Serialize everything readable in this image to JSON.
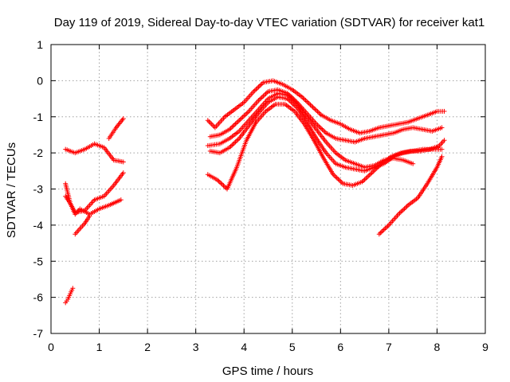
{
  "chart_data": {
    "type": "scatter",
    "title": "Day 119 of 2019, Sidereal Day-to-day VTEC variation (SDTVAR) for receiver kat1",
    "xlabel": "GPS time / hours",
    "ylabel": "SDTVAR / TECUs",
    "xlim": [
      0,
      9
    ],
    "ylim": [
      -7,
      1
    ],
    "xticks": [
      "0",
      "1",
      "2",
      "3",
      "4",
      "5",
      "6",
      "7",
      "8",
      "9"
    ],
    "yticks": [
      "-7",
      "-6",
      "-5",
      "-4",
      "-3",
      "-2",
      "-1",
      "0",
      "1"
    ],
    "grid": true,
    "marker": "+",
    "color": "#ff0000",
    "series": [
      {
        "name": "early-1",
        "x": [
          0.3,
          0.5,
          0.7,
          0.9,
          1.1,
          1.3,
          1.5
        ],
        "y": [
          -1.9,
          -2.0,
          -1.9,
          -1.75,
          -1.85,
          -2.2,
          -2.25
        ]
      },
      {
        "name": "early-2",
        "x": [
          1.2,
          1.35,
          1.5
        ],
        "y": [
          -1.6,
          -1.3,
          -1.05
        ]
      },
      {
        "name": "early-3",
        "x": [
          0.3,
          0.4,
          0.5,
          0.7,
          0.9,
          1.1,
          1.3,
          1.5
        ],
        "y": [
          -3.2,
          -3.4,
          -3.65,
          -3.6,
          -3.3,
          -3.2,
          -2.9,
          -2.55
        ]
      },
      {
        "name": "early-4",
        "x": [
          0.3,
          0.4,
          0.5,
          0.6,
          0.8,
          1.0,
          1.2,
          1.45
        ],
        "y": [
          -2.85,
          -3.4,
          -3.7,
          -3.55,
          -3.7,
          -3.55,
          -3.45,
          -3.3
        ]
      },
      {
        "name": "early-5",
        "x": [
          0.5,
          0.6,
          0.7,
          0.8
        ],
        "y": [
          -4.25,
          -4.1,
          -3.95,
          -3.75
        ]
      },
      {
        "name": "early-6",
        "x": [
          0.3,
          0.35,
          0.4,
          0.45
        ],
        "y": [
          -6.15,
          -6.05,
          -5.9,
          -5.75
        ]
      },
      {
        "name": "late-1",
        "x": [
          3.25,
          3.4,
          3.6,
          3.8,
          4.0,
          4.2,
          4.4,
          4.6,
          4.8,
          5.0,
          5.2,
          5.4,
          5.6,
          5.8,
          6.0,
          6.2,
          6.4,
          6.6,
          6.8,
          7.0,
          7.2,
          7.4,
          7.6,
          7.8,
          8.0,
          8.15
        ],
        "y": [
          -1.1,
          -1.3,
          -1.0,
          -0.8,
          -0.6,
          -0.3,
          -0.05,
          0.0,
          -0.1,
          -0.25,
          -0.45,
          -0.7,
          -0.95,
          -1.1,
          -1.2,
          -1.35,
          -1.45,
          -1.4,
          -1.3,
          -1.25,
          -1.2,
          -1.15,
          -1.05,
          -0.95,
          -0.85,
          -0.85
        ]
      },
      {
        "name": "late-2",
        "x": [
          3.3,
          3.5,
          3.7,
          3.9,
          4.1,
          4.3,
          4.5,
          4.7,
          4.9,
          5.1,
          5.3,
          5.5,
          5.7,
          5.9,
          6.1,
          6.3,
          6.5,
          6.7,
          6.9,
          7.1,
          7.3,
          7.5,
          7.7,
          7.9,
          8.1
        ],
        "y": [
          -1.55,
          -1.5,
          -1.35,
          -1.1,
          -0.85,
          -0.55,
          -0.3,
          -0.25,
          -0.35,
          -0.6,
          -0.9,
          -1.2,
          -1.45,
          -1.6,
          -1.65,
          -1.7,
          -1.6,
          -1.55,
          -1.5,
          -1.45,
          -1.35,
          -1.3,
          -1.35,
          -1.4,
          -1.3
        ]
      },
      {
        "name": "late-3",
        "x": [
          3.25,
          3.5,
          3.7,
          3.9,
          4.1,
          4.3,
          4.5,
          4.7,
          4.9,
          5.1,
          5.3,
          5.5,
          5.7,
          5.9,
          6.1,
          6.3,
          6.5,
          6.7,
          6.9,
          7.1,
          7.3,
          7.5
        ],
        "y": [
          -1.8,
          -1.75,
          -1.6,
          -1.4,
          -1.1,
          -0.8,
          -0.5,
          -0.35,
          -0.4,
          -0.65,
          -1.0,
          -1.35,
          -1.7,
          -2.0,
          -2.2,
          -2.3,
          -2.4,
          -2.35,
          -2.2,
          -2.15,
          -2.2,
          -2.3
        ]
      },
      {
        "name": "late-4",
        "x": [
          3.3,
          3.5,
          3.7,
          3.9,
          4.1,
          4.3,
          4.5,
          4.7,
          4.9,
          5.1,
          5.3,
          5.5,
          5.7,
          5.9,
          6.1,
          6.3,
          6.5,
          6.7,
          6.9,
          7.1,
          7.3,
          7.5,
          7.7,
          7.9,
          8.1
        ],
        "y": [
          -1.95,
          -2.0,
          -1.85,
          -1.6,
          -1.25,
          -0.9,
          -0.6,
          -0.45,
          -0.5,
          -0.75,
          -1.15,
          -1.6,
          -2.0,
          -2.3,
          -2.4,
          -2.45,
          -2.5,
          -2.4,
          -2.3,
          -2.1,
          -2.0,
          -1.95,
          -1.9,
          -1.9,
          -1.9
        ]
      },
      {
        "name": "late-5",
        "x": [
          3.25,
          3.45,
          3.65,
          3.85,
          4.05,
          4.25,
          4.45,
          4.65,
          4.85,
          5.05,
          5.25,
          5.45,
          5.65,
          5.85,
          6.05,
          6.25,
          6.45,
          6.65,
          6.85,
          7.05,
          7.25,
          7.45,
          7.65,
          7.85,
          8.05,
          8.15
        ],
        "y": [
          -2.6,
          -2.75,
          -3.0,
          -2.4,
          -1.65,
          -1.15,
          -0.85,
          -0.65,
          -0.65,
          -0.85,
          -1.2,
          -1.65,
          -2.15,
          -2.6,
          -2.85,
          -2.9,
          -2.8,
          -2.55,
          -2.3,
          -2.1,
          -2.0,
          -1.95,
          -1.95,
          -1.9,
          -1.8,
          -1.65
        ]
      },
      {
        "name": "late-6",
        "x": [
          6.8,
          7.0,
          7.2,
          7.4,
          7.6,
          7.8,
          8.0,
          8.1
        ],
        "y": [
          -4.25,
          -4.0,
          -3.7,
          -3.45,
          -3.25,
          -2.85,
          -2.4,
          -2.1
        ]
      }
    ]
  }
}
